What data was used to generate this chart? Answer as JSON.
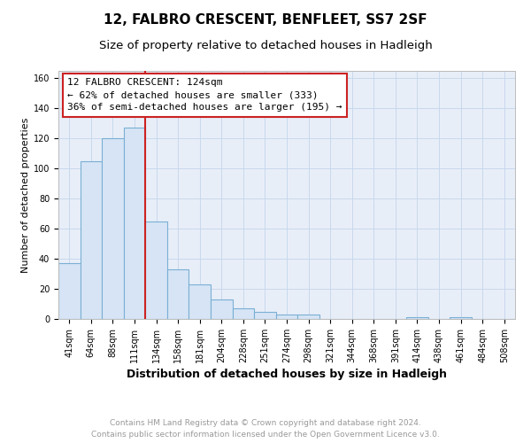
{
  "title": "12, FALBRO CRESCENT, BENFLEET, SS7 2SF",
  "subtitle": "Size of property relative to detached houses in Hadleigh",
  "xlabel": "Distribution of detached houses by size in Hadleigh",
  "ylabel": "Number of detached properties",
  "bin_labels": [
    "41sqm",
    "64sqm",
    "88sqm",
    "111sqm",
    "134sqm",
    "158sqm",
    "181sqm",
    "204sqm",
    "228sqm",
    "251sqm",
    "274sqm",
    "298sqm",
    "321sqm",
    "344sqm",
    "368sqm",
    "391sqm",
    "414sqm",
    "438sqm",
    "461sqm",
    "484sqm",
    "508sqm"
  ],
  "bar_heights": [
    37,
    105,
    120,
    127,
    65,
    33,
    23,
    13,
    7,
    5,
    3,
    3,
    0,
    0,
    0,
    0,
    1,
    0,
    1,
    0,
    0
  ],
  "bar_color": "#d6e4f5",
  "bar_edge_color": "#7aafd4",
  "vline_color": "#cc2222",
  "annotation_line1": "12 FALBRO CRESCENT: 124sqm",
  "annotation_line2": "← 62% of detached houses are smaller (333)",
  "annotation_line3": "36% of semi-detached houses are larger (195) →",
  "annotation_box_color": "#cc2222",
  "ylim": [
    0,
    165
  ],
  "yticks": [
    0,
    20,
    40,
    60,
    80,
    100,
    120,
    140,
    160
  ],
  "grid_color": "#c8d8ec",
  "background_color": "#e8eef8",
  "footer_line1": "Contains HM Land Registry data © Crown copyright and database right 2024.",
  "footer_line2": "Contains public sector information licensed under the Open Government Licence v3.0.",
  "footer_color": "#999999",
  "title_fontsize": 11,
  "subtitle_fontsize": 9.5,
  "xlabel_fontsize": 9,
  "ylabel_fontsize": 8,
  "tick_fontsize": 7,
  "annotation_fontsize": 8,
  "footer_fontsize": 6.5
}
